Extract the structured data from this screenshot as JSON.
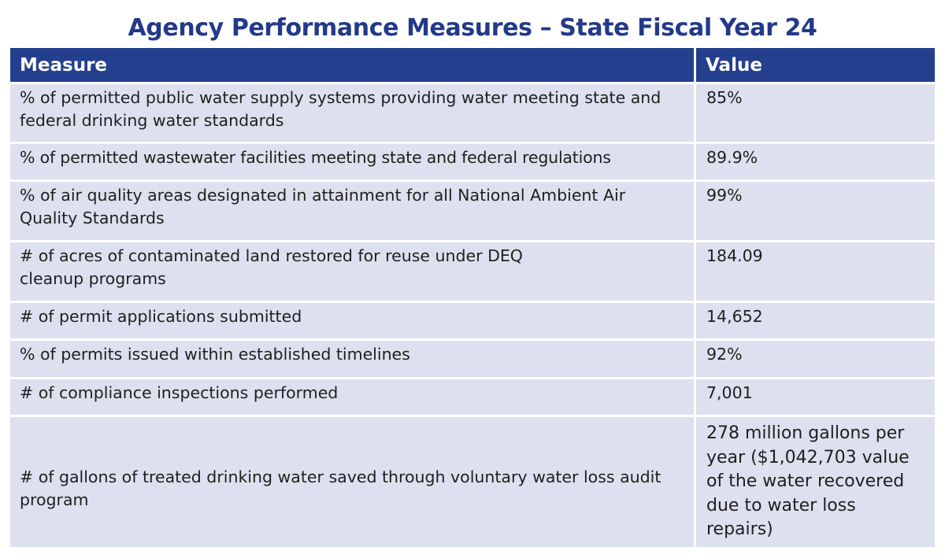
{
  "title": "Agency Performance Measures – State Fiscal Year 24",
  "table": {
    "headers": [
      "Measure",
      "Value"
    ],
    "rows": [
      {
        "measure": "% of permitted public water supply systems providing water meeting state and federal drinking water standards",
        "value": "85%"
      },
      {
        "measure": "% of permitted wastewater facilities meeting state and federal regulations",
        "value": "89.9%"
      },
      {
        "measure": "% of air quality areas designated in attainment for all National Ambient Air Quality Standards",
        "value": "99%"
      },
      {
        "measure": "# of acres of contaminated land restored for reuse under DEQ cleanup programs",
        "value": "184.09"
      },
      {
        "measure": "# of permit applications submitted",
        "value": "14,652"
      },
      {
        "measure": "% of permits issued within established timelines",
        "value": "92%"
      },
      {
        "measure": "# of compliance inspections performed",
        "value": "7,001"
      },
      {
        "measure": "# of gallons of treated drinking water saved through voluntary water loss audit program",
        "value": "278 million gallons per year ($1,042,703 value of the water recovered due to water loss repairs)"
      }
    ]
  },
  "colors": {
    "title": "#23398a",
    "header_bg": "#243f8e",
    "row_bg": "#dde0ee"
  }
}
